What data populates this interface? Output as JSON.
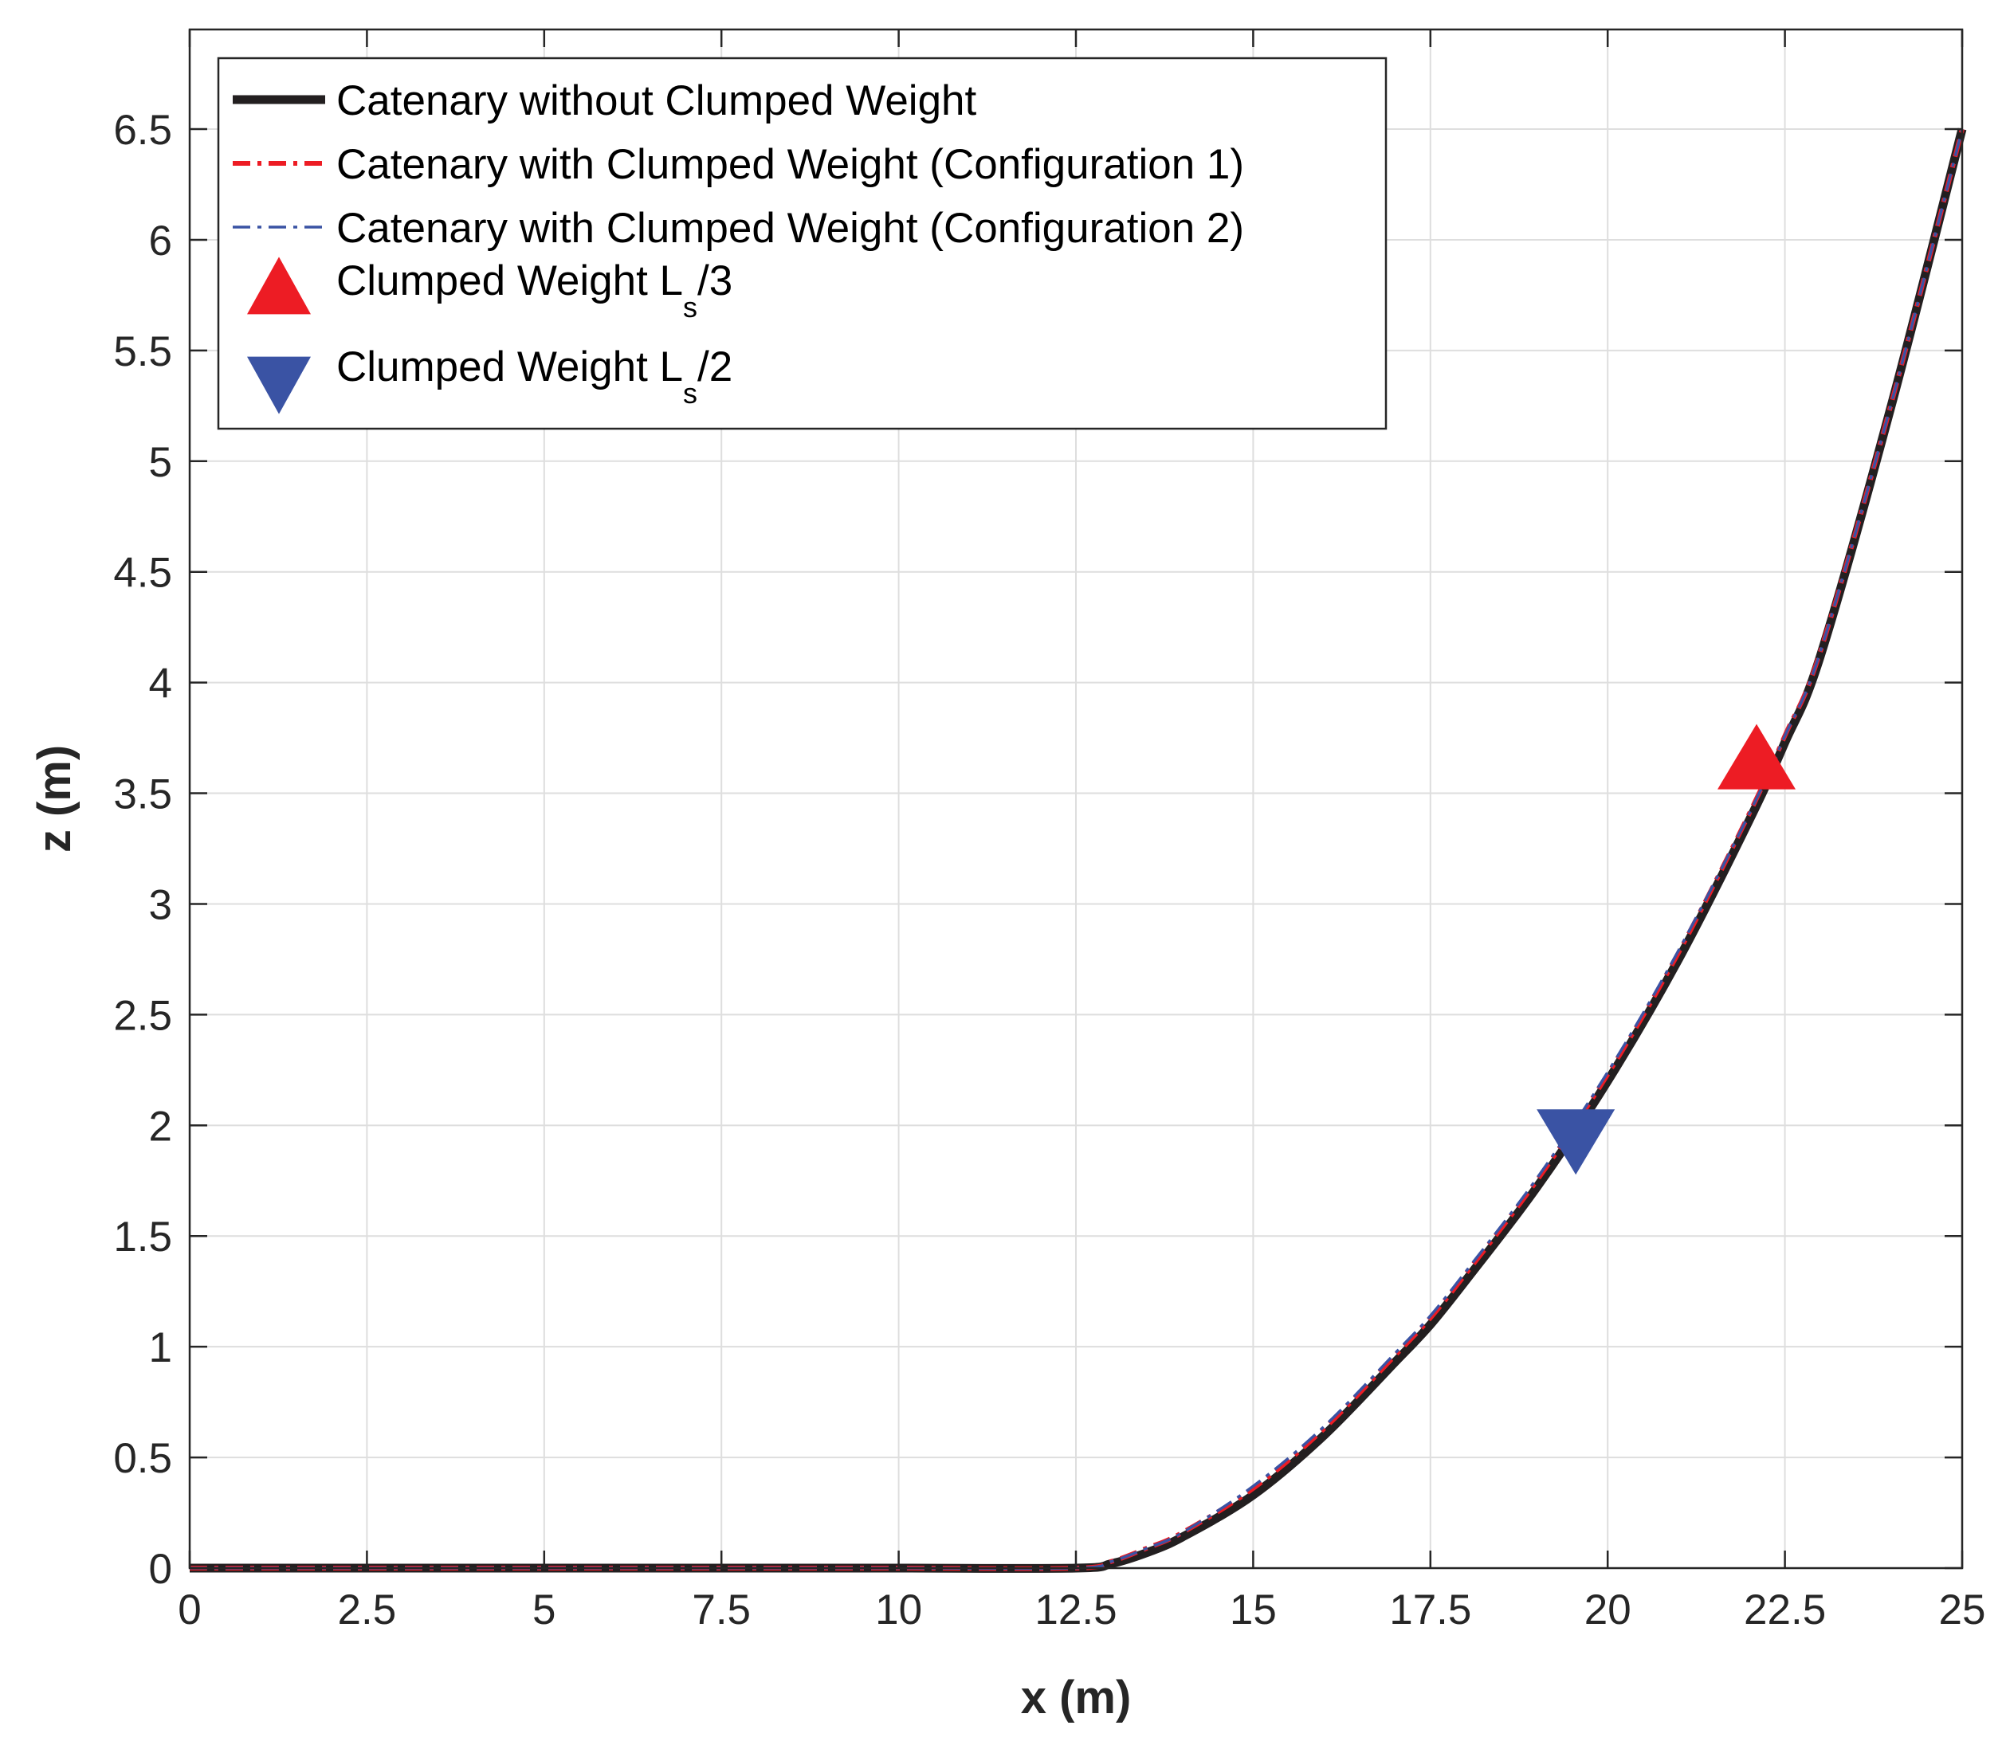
{
  "chart_data": {
    "type": "line",
    "title": "",
    "xlabel": "x (m)",
    "ylabel": "z (m)",
    "xlim": [
      0,
      25
    ],
    "ylim": [
      0,
      6.95
    ],
    "xticks": [
      0,
      2.5,
      5,
      7.5,
      10,
      12.5,
      15,
      17.5,
      20,
      22.5,
      25
    ],
    "xtick_labels": [
      "0",
      "2.5",
      "5",
      "7.5",
      "10",
      "12.5",
      "15",
      "17.5",
      "20",
      "22.5",
      "25"
    ],
    "yticks": [
      0,
      0.5,
      1,
      1.5,
      2,
      2.5,
      3,
      3.5,
      4,
      4.5,
      5,
      5.5,
      6,
      6.5
    ],
    "ytick_labels": [
      "0",
      "0.5",
      "1",
      "1.5",
      "2",
      "2.5",
      "3",
      "3.5",
      "4",
      "4.5",
      "5",
      "5.5",
      "6",
      "6.5"
    ],
    "grid": true,
    "legend_position": "top-left",
    "series": [
      {
        "name": "Catenary without Clumped Weight",
        "style": "solid-thick",
        "color": "#231f20",
        "x": [
          0,
          2.5,
          5,
          7.5,
          10,
          12.5,
          13,
          13.5,
          14,
          15,
          16,
          17,
          17.5,
          18,
          19,
          20,
          21,
          22,
          22.5,
          23,
          24,
          25
        ],
        "y": [
          0,
          0,
          0,
          0,
          0,
          0,
          0.02,
          0.07,
          0.14,
          0.33,
          0.6,
          0.93,
          1.1,
          1.3,
          1.72,
          2.2,
          2.75,
          3.38,
          3.73,
          4.12,
          5.25,
          6.5
        ]
      },
      {
        "name": "Catenary with Clumped Weight (Configuration 1)",
        "style": "dash-dot-thick",
        "color": "#ed1c24",
        "x": [
          0,
          2.5,
          5,
          7.5,
          10,
          12.5,
          13,
          13.5,
          14,
          15,
          16,
          17,
          17.5,
          18,
          19,
          20,
          21,
          22,
          22.5,
          23,
          24,
          25
        ],
        "y": [
          0,
          0,
          0,
          0,
          0,
          0,
          0.03,
          0.09,
          0.16,
          0.36,
          0.63,
          0.96,
          1.13,
          1.33,
          1.75,
          2.23,
          2.78,
          3.41,
          3.76,
          4.14,
          5.26,
          6.5
        ]
      },
      {
        "name": "Catenary with Clumped Weight (Configuration 2)",
        "style": "dash-dot-thin",
        "color": "#3a53a4",
        "x": [
          0,
          2.5,
          5,
          7.5,
          10,
          12.5,
          13,
          13.5,
          14,
          15,
          16,
          17,
          17.5,
          18,
          19,
          20,
          21,
          22,
          22.5,
          23,
          24,
          25
        ],
        "y": [
          0,
          0,
          0,
          0,
          0,
          0,
          0.03,
          0.09,
          0.16,
          0.37,
          0.64,
          0.97,
          1.14,
          1.34,
          1.76,
          2.24,
          2.79,
          3.41,
          3.76,
          4.14,
          5.26,
          6.5
        ]
      }
    ],
    "markers": [
      {
        "name": "Clumped Weight L",
        "name_sub": "s",
        "name_tail": "/3",
        "shape": "triangle-up",
        "color": "#ed1c24",
        "x": 22.1,
        "y": 3.63
      },
      {
        "name": "Clumped Weight L",
        "name_sub": "s",
        "name_tail": "/2",
        "shape": "triangle-down",
        "color": "#3a53a4",
        "x": 19.55,
        "y": 1.96
      }
    ]
  }
}
